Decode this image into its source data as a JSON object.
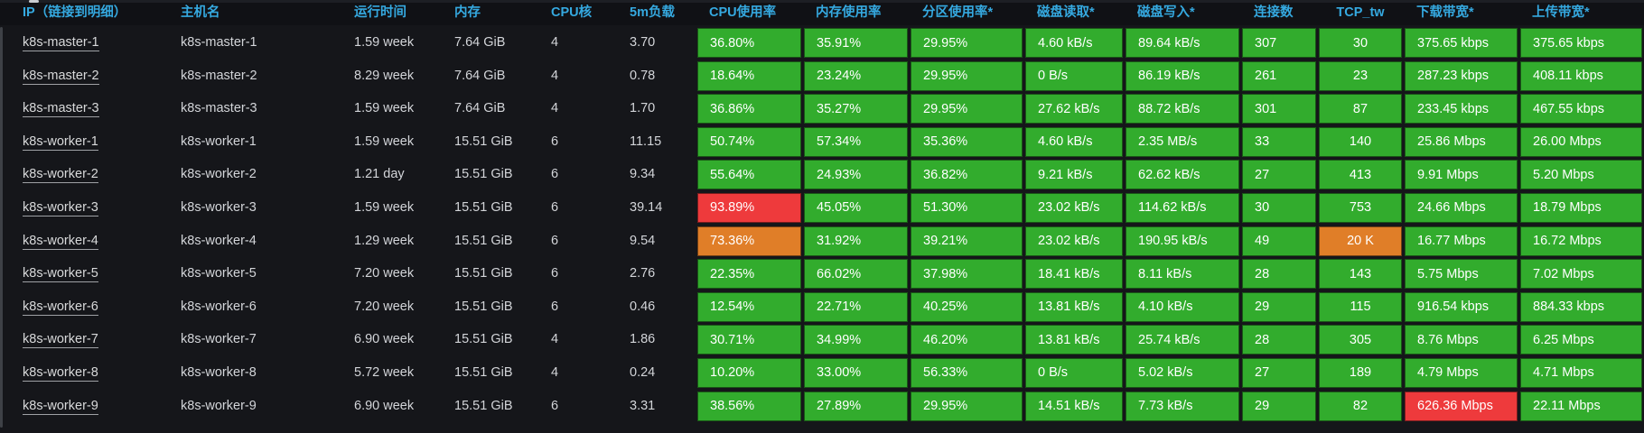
{
  "colors": {
    "green": "#32ac2d",
    "orange": "#e07e28",
    "red": "#ee3a3c",
    "header_text": "#35a9e0",
    "body_text": "#d3d5d9",
    "panel_bg": "#15161a",
    "header_bg": "#101115"
  },
  "table": {
    "columns": [
      {
        "key": "ip",
        "label": "IP（链接到明细）",
        "metric": false,
        "align": "left",
        "link": true
      },
      {
        "key": "hostname",
        "label": "主机名",
        "metric": false,
        "align": "left"
      },
      {
        "key": "uptime",
        "label": "运行时间",
        "metric": false,
        "align": "left"
      },
      {
        "key": "memory",
        "label": "内存",
        "metric": false,
        "align": "left"
      },
      {
        "key": "cpu_cores",
        "label": "CPU核",
        "metric": false,
        "align": "left"
      },
      {
        "key": "load_5m",
        "label": "5m负载",
        "metric": false,
        "align": "left"
      },
      {
        "key": "cpu_usage",
        "label": "CPU使用率",
        "metric": true,
        "align": "left"
      },
      {
        "key": "mem_usage",
        "label": "内存使用率",
        "metric": true,
        "align": "left"
      },
      {
        "key": "partition_usage",
        "label": "分区使用率*",
        "metric": true,
        "align": "left"
      },
      {
        "key": "disk_read",
        "label": "磁盘读取*",
        "metric": true,
        "align": "left"
      },
      {
        "key": "disk_write",
        "label": "磁盘写入*",
        "metric": true,
        "align": "left"
      },
      {
        "key": "connections",
        "label": "连接数",
        "metric": true,
        "align": "left"
      },
      {
        "key": "tcp_tw",
        "label": "TCP_tw",
        "metric": true,
        "align": "center"
      },
      {
        "key": "download_bw",
        "label": "下载带宽*",
        "metric": true,
        "align": "left"
      },
      {
        "key": "upload_bw",
        "label": "上传带宽*",
        "metric": true,
        "align": "left"
      }
    ],
    "default_metric_color": "green",
    "rows": [
      {
        "values": [
          "k8s-master-1",
          "k8s-master-1",
          "1.59 week",
          "7.64 GiB",
          "4",
          "3.70",
          "36.80%",
          "35.91%",
          "29.95%",
          "4.60 kB/s",
          "89.64 kB/s",
          "307",
          "30",
          "375.65 kbps",
          "375.65 kbps"
        ],
        "cell_colors": {}
      },
      {
        "values": [
          "k8s-master-2",
          "k8s-master-2",
          "8.29 week",
          "7.64 GiB",
          "4",
          "0.78",
          "18.64%",
          "23.24%",
          "29.95%",
          "0 B/s",
          "86.19 kB/s",
          "261",
          "23",
          "287.23 kbps",
          "408.11 kbps"
        ],
        "cell_colors": {}
      },
      {
        "values": [
          "k8s-master-3",
          "k8s-master-3",
          "1.59 week",
          "7.64 GiB",
          "4",
          "1.70",
          "36.86%",
          "35.27%",
          "29.95%",
          "27.62 kB/s",
          "88.72 kB/s",
          "301",
          "87",
          "233.45 kbps",
          "467.55 kbps"
        ],
        "cell_colors": {}
      },
      {
        "values": [
          "k8s-worker-1",
          "k8s-worker-1",
          "1.59 week",
          "15.51 GiB",
          "6",
          "11.15",
          "50.74%",
          "57.34%",
          "35.36%",
          "4.60 kB/s",
          "2.35 MB/s",
          "33",
          "140",
          "25.86 Mbps",
          "26.00 Mbps"
        ],
        "cell_colors": {}
      },
      {
        "values": [
          "k8s-worker-2",
          "k8s-worker-2",
          "1.21 day",
          "15.51 GiB",
          "6",
          "9.34",
          "55.64%",
          "24.93%",
          "36.82%",
          "9.21 kB/s",
          "62.62 kB/s",
          "27",
          "413",
          "9.91 Mbps",
          "5.20 Mbps"
        ],
        "cell_colors": {}
      },
      {
        "values": [
          "k8s-worker-3",
          "k8s-worker-3",
          "1.59 week",
          "15.51 GiB",
          "6",
          "39.14",
          "93.89%",
          "45.05%",
          "51.30%",
          "23.02 kB/s",
          "114.62 kB/s",
          "30",
          "753",
          "24.66 Mbps",
          "18.79 Mbps"
        ],
        "cell_colors": {
          "cpu_usage": "red"
        }
      },
      {
        "values": [
          "k8s-worker-4",
          "k8s-worker-4",
          "1.29 week",
          "15.51 GiB",
          "6",
          "9.54",
          "73.36%",
          "31.92%",
          "39.21%",
          "23.02 kB/s",
          "190.95 kB/s",
          "49",
          "20 K",
          "16.77 Mbps",
          "16.72 Mbps"
        ],
        "cell_colors": {
          "cpu_usage": "orange",
          "tcp_tw": "orange"
        }
      },
      {
        "values": [
          "k8s-worker-5",
          "k8s-worker-5",
          "7.20 week",
          "15.51 GiB",
          "6",
          "2.76",
          "22.35%",
          "66.02%",
          "37.98%",
          "18.41 kB/s",
          "8.11 kB/s",
          "28",
          "143",
          "5.75 Mbps",
          "7.02 Mbps"
        ],
        "cell_colors": {}
      },
      {
        "values": [
          "k8s-worker-6",
          "k8s-worker-6",
          "7.20 week",
          "15.51 GiB",
          "6",
          "0.46",
          "12.54%",
          "22.71%",
          "40.25%",
          "13.81 kB/s",
          "4.10 kB/s",
          "29",
          "115",
          "916.54 kbps",
          "884.33 kbps"
        ],
        "cell_colors": {}
      },
      {
        "values": [
          "k8s-worker-7",
          "k8s-worker-7",
          "6.90 week",
          "15.51 GiB",
          "4",
          "1.86",
          "30.71%",
          "34.99%",
          "46.20%",
          "13.81 kB/s",
          "25.74 kB/s",
          "28",
          "305",
          "8.76 Mbps",
          "6.25 Mbps"
        ],
        "cell_colors": {}
      },
      {
        "values": [
          "k8s-worker-8",
          "k8s-worker-8",
          "5.72 week",
          "15.51 GiB",
          "4",
          "0.24",
          "10.20%",
          "33.00%",
          "56.33%",
          "0 B/s",
          "5.02 kB/s",
          "27",
          "189",
          "4.79 Mbps",
          "4.71 Mbps"
        ],
        "cell_colors": {}
      },
      {
        "values": [
          "k8s-worker-9",
          "k8s-worker-9",
          "6.90 week",
          "15.51 GiB",
          "6",
          "3.31",
          "38.56%",
          "27.89%",
          "29.95%",
          "14.51 kB/s",
          "7.73 kB/s",
          "29",
          "82",
          "626.36 Mbps",
          "22.11 Mbps"
        ],
        "cell_colors": {
          "download_bw": "red"
        }
      }
    ]
  }
}
